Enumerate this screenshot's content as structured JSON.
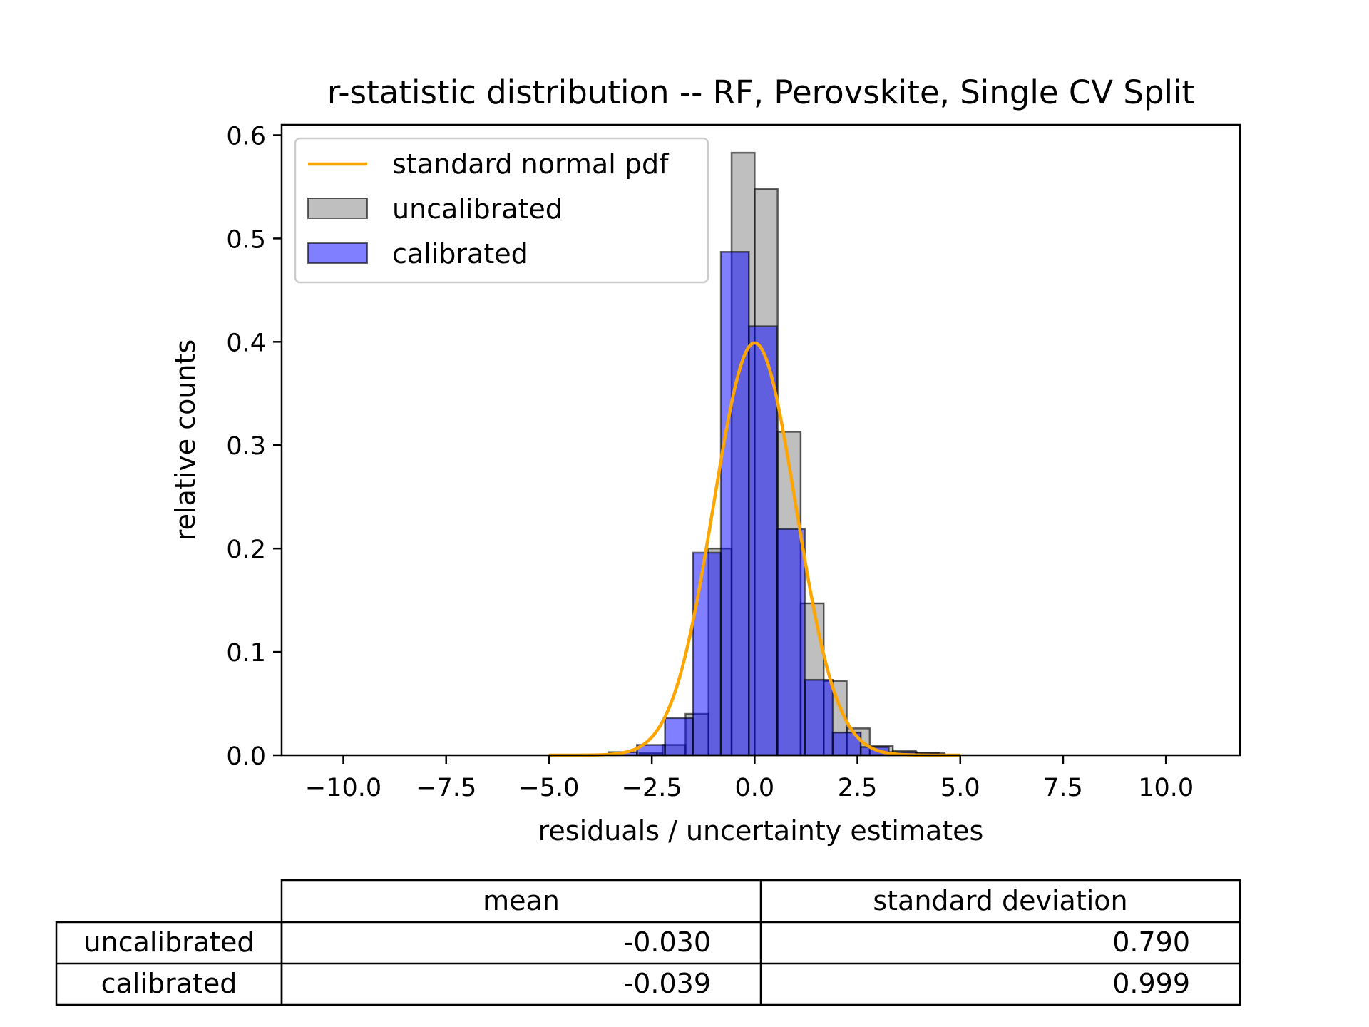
{
  "chart_data": {
    "type": "bar",
    "title": "r-statistic distribution -- RF, Perovskite, Single CV Split",
    "xlabel": "residuals / uncertainty estimates",
    "ylabel": "relative counts",
    "xlim": [
      -11.5,
      11.8
    ],
    "ylim": [
      0,
      0.61
    ],
    "grid": false,
    "legend_position": "upper-left",
    "x_ticks": [
      -10,
      -7.5,
      -5,
      -2.5,
      0,
      2.5,
      5,
      7.5,
      10
    ],
    "x_tick_labels": [
      "−10.0",
      "−7.5",
      "−5.0",
      "−2.5",
      "0.0",
      "2.5",
      "5.0",
      "7.5",
      "10.0"
    ],
    "y_ticks": [
      0,
      0.1,
      0.2,
      0.3,
      0.4,
      0.5,
      0.6
    ],
    "y_tick_labels": [
      "0.0",
      "0.1",
      "0.2",
      "0.3",
      "0.4",
      "0.5",
      "0.6"
    ],
    "series": [
      {
        "name": "uncalibrated",
        "kind": "histogram",
        "color": "#808080",
        "alpha": 0.5,
        "edgecolor": "#000000",
        "bin_edges": [
          -2.8,
          -2.24,
          -1.68,
          -1.12,
          -0.56,
          0.0,
          0.56,
          1.12,
          1.68,
          2.24,
          2.8,
          3.36,
          3.92,
          4.48
        ],
        "values": [
          0.002,
          0.01,
          0.04,
          0.2,
          0.583,
          0.548,
          0.313,
          0.147,
          0.072,
          0.026,
          0.009,
          0.004,
          0.002
        ]
      },
      {
        "name": "calibrated",
        "kind": "histogram",
        "color": "#0000ff",
        "alpha": 0.5,
        "edgecolor": "#000000",
        "bin_edges": [
          -3.54,
          -2.86,
          -2.18,
          -1.5,
          -0.82,
          -0.14,
          0.54,
          1.22,
          1.9,
          2.58,
          3.26,
          3.94,
          4.62
        ],
        "values": [
          0.003,
          0.01,
          0.036,
          0.196,
          0.487,
          0.415,
          0.219,
          0.073,
          0.022,
          0.008,
          0.003,
          0.002
        ]
      },
      {
        "name": "standard normal pdf",
        "kind": "line",
        "color": "#ffa500",
        "function": "standard normal pdf",
        "x_range": [
          -5,
          5
        ]
      }
    ],
    "table": {
      "col_headers": [
        "mean",
        "standard deviation"
      ],
      "rows": [
        {
          "label": "uncalibrated",
          "mean": "-0.030",
          "std": "0.790"
        },
        {
          "label": "calibrated",
          "mean": "-0.039",
          "std": "0.999"
        }
      ]
    }
  }
}
